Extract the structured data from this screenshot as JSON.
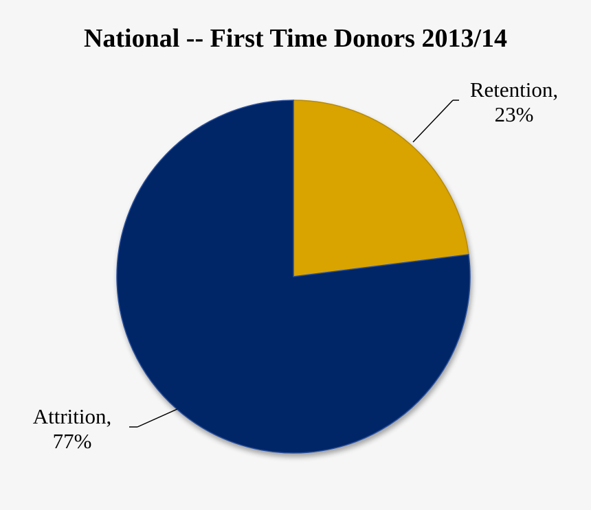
{
  "chart_data": {
    "type": "pie",
    "title": "National -- First Time Donors 2013/14",
    "categories": [
      "Retention",
      "Attrition"
    ],
    "values": [
      23,
      77
    ],
    "unit": "%",
    "colors": [
      "#d9a306",
      "#062767"
    ],
    "labels": [
      {
        "name": "Retention,",
        "value": "23%"
      },
      {
        "name": "Attrition,",
        "value": "77%"
      }
    ],
    "legend": "none",
    "start_angle": "12 o'clock, clockwise"
  }
}
